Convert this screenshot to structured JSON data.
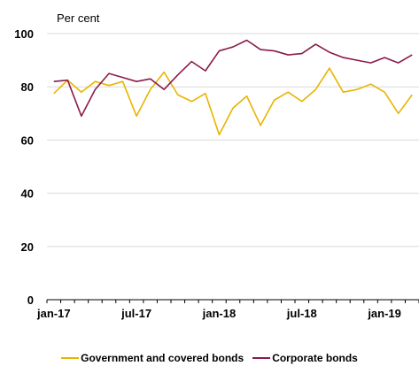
{
  "chart_data": {
    "type": "line",
    "unit_label": "Per cent",
    "ylim": [
      0,
      100
    ],
    "yticks": [
      0,
      20,
      40,
      60,
      80,
      100
    ],
    "x": [
      "jan-17",
      "feb-17",
      "mar-17",
      "apr-17",
      "mai-17",
      "jun-17",
      "jul-17",
      "aug-17",
      "sep-17",
      "okt-17",
      "nov-17",
      "des-17",
      "jan-18",
      "feb-18",
      "mar-18",
      "apr-18",
      "mai-18",
      "jun-18",
      "jul-18",
      "aug-18",
      "sep-18",
      "okt-18",
      "nov-18",
      "des-18",
      "jan-19",
      "feb-19",
      "mar-19"
    ],
    "xtick_labels": [
      "jan-17",
      "jul-17",
      "jan-18",
      "jul-18",
      "jan-19"
    ],
    "xtick_positions": [
      0,
      6,
      12,
      18,
      24
    ],
    "grid": "horizontal",
    "legend_position": "bottom",
    "series": [
      {
        "name": "Government and covered bonds",
        "color": "#e8b400",
        "values": [
          77.5,
          82.5,
          78,
          82,
          80.5,
          82,
          69,
          79,
          85.5,
          77,
          74.5,
          77.5,
          62,
          72,
          76.5,
          65.5,
          75,
          78,
          74.5,
          79,
          87,
          78,
          79,
          81,
          78,
          70,
          77
        ]
      },
      {
        "name": "Corporate bonds",
        "color": "#8b1a4a",
        "values": [
          82,
          82.5,
          69,
          79,
          85,
          83.5,
          82,
          83,
          79,
          84.5,
          89.5,
          86,
          93.5,
          95,
          97.5,
          94,
          93.5,
          92,
          92.5,
          96,
          93,
          91,
          90,
          89,
          91,
          89,
          92
        ]
      }
    ]
  }
}
